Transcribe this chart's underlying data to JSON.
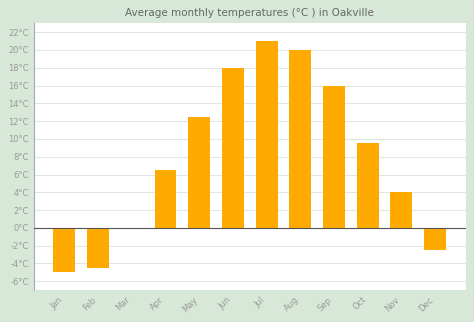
{
  "months": [
    "Jan",
    "Feb",
    "Mar",
    "Apr",
    "May",
    "Jun",
    "Jul",
    "Aug",
    "Sep",
    "Oct",
    "Nov",
    "Dec"
  ],
  "values": [
    -5,
    -4.5,
    0,
    6.5,
    12.5,
    18,
    21,
    20,
    16,
    9.5,
    4,
    -2.5
  ],
  "bar_color": "#FFAA00",
  "background_color": "#ffffff",
  "outer_background": "#d8e8d8",
  "title": "Average monthly temperatures (°C ) in Oakville",
  "title_fontsize": 7.5,
  "ylim": [
    -7,
    23
  ],
  "yticks": [
    -6,
    -4,
    -2,
    0,
    2,
    4,
    6,
    8,
    10,
    12,
    14,
    16,
    18,
    20,
    22
  ],
  "ytick_labels": [
    "-6°C",
    "-4°C",
    "-2°C",
    "0°C",
    "2°C",
    "4°C",
    "6°C",
    "8°C",
    "10°C",
    "12°C",
    "14°C",
    "16°C",
    "18°C",
    "20°C",
    "22°C"
  ],
  "grid_color": "#e0e8e0",
  "zero_line_color": "#555555",
  "tick_fontsize": 6,
  "bar_width": 0.65
}
